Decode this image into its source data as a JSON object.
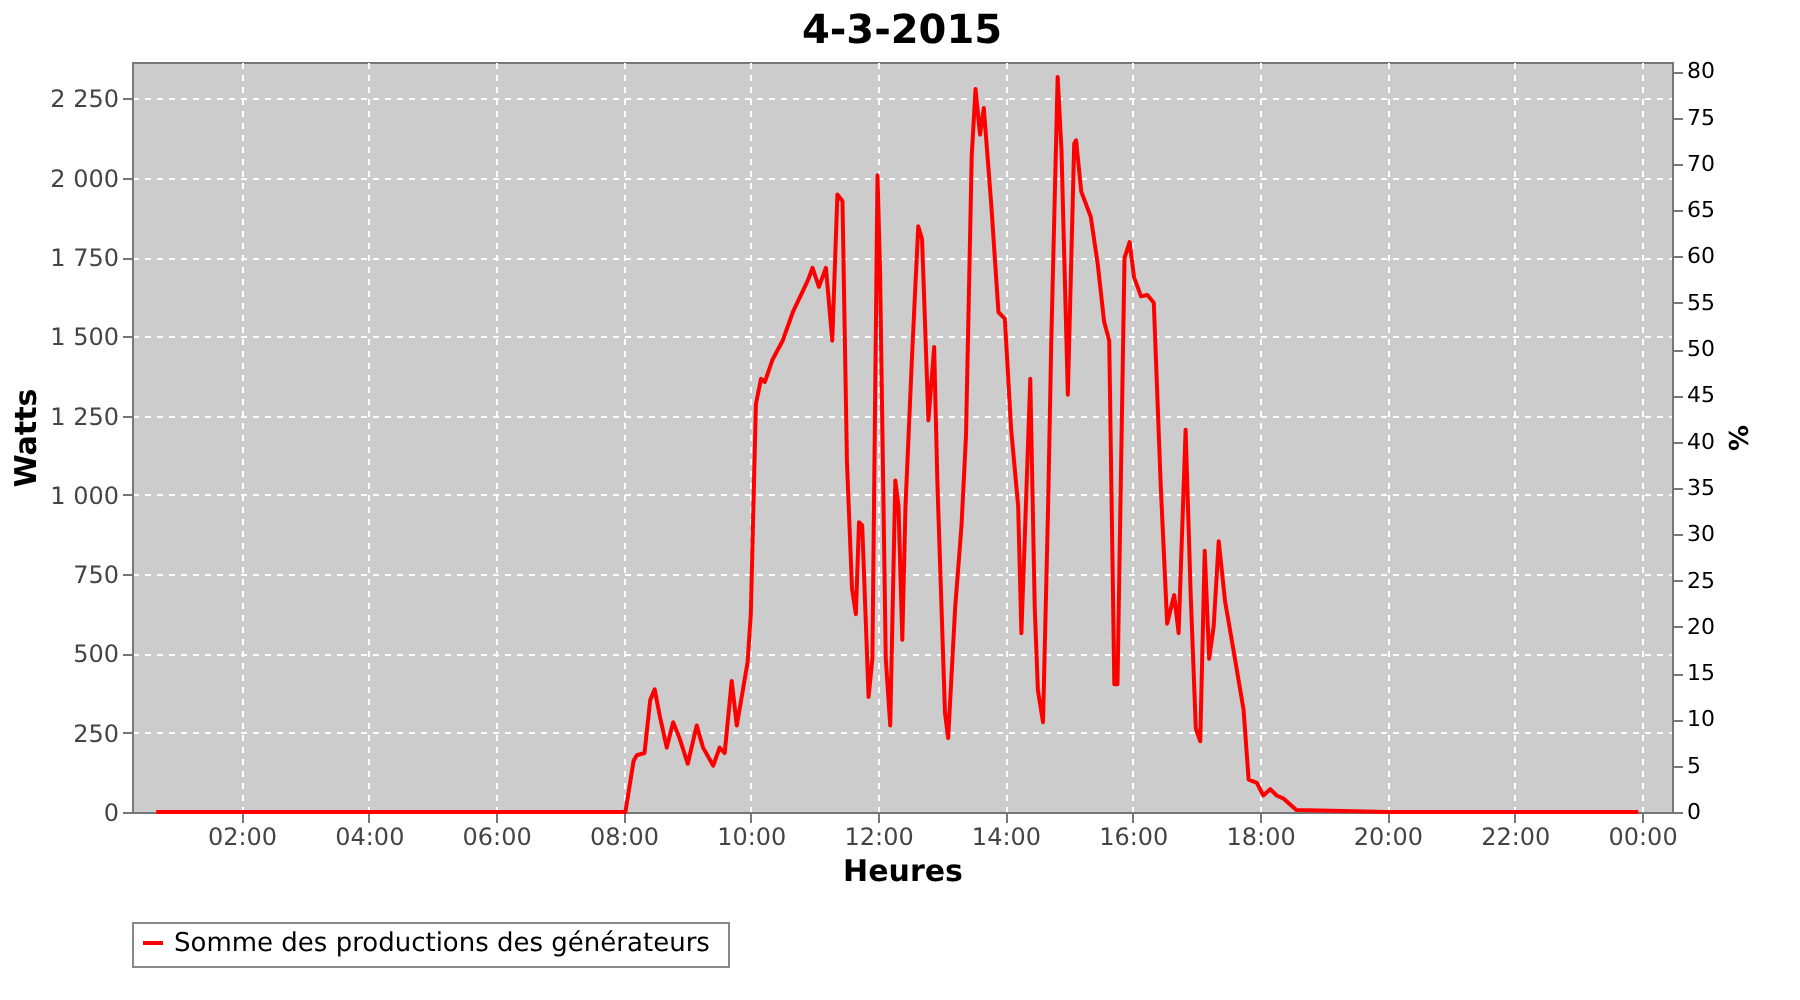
{
  "chart_data": {
    "type": "line",
    "title": "4-3-2015",
    "xlabel": "Heures",
    "ylabel": "Watts",
    "y2label": "%",
    "xlim": [
      0.28,
      24.47
    ],
    "xticks": [
      {
        "value": 2,
        "label": "02:00"
      },
      {
        "value": 4,
        "label": "04:00"
      },
      {
        "value": 6,
        "label": "06:00"
      },
      {
        "value": 8,
        "label": "08:00"
      },
      {
        "value": 10,
        "label": "10:00"
      },
      {
        "value": 12,
        "label": "12:00"
      },
      {
        "value": 14,
        "label": "14:00"
      },
      {
        "value": 16,
        "label": "16:00"
      },
      {
        "value": 18,
        "label": "18:00"
      },
      {
        "value": 20,
        "label": "20:00"
      },
      {
        "value": 22,
        "label": "22:00"
      },
      {
        "value": 24,
        "label": "00:00"
      }
    ],
    "ylim": [
      0,
      2365
    ],
    "yticks": [
      0,
      250,
      500,
      750,
      {
        "value": 1000,
        "label": "1 000"
      },
      {
        "value": 1250,
        "label": "1 250"
      },
      {
        "value": 1500,
        "label": "1 500"
      },
      {
        "value": 1750,
        "label": "1 750"
      },
      {
        "value": 2000,
        "label": "2 000"
      },
      {
        "value": 2250,
        "label": "2 250"
      }
    ],
    "y2lim": [
      0,
      81
    ],
    "y2ticks": [
      0,
      5,
      10,
      15,
      20,
      25,
      30,
      35,
      40,
      45,
      50,
      55,
      60,
      65,
      70,
      75,
      80
    ],
    "grid": true,
    "legend": "bottom",
    "marker": "none",
    "line_style": "solid",
    "series": [
      {
        "name": "Somme des productions des  générateurs",
        "color": "#ff0000",
        "x": [
          0.66,
          4.0,
          7.0,
          8.0,
          8.03,
          8.16,
          8.21,
          8.33,
          8.42,
          8.49,
          8.57,
          8.68,
          8.78,
          8.88,
          9.01,
          9.15,
          9.25,
          9.41,
          9.51,
          9.59,
          9.7,
          9.78,
          9.84,
          9.95,
          10.0,
          10.08,
          10.16,
          10.22,
          10.34,
          10.5,
          10.66,
          10.9,
          10.97,
          11.07,
          11.18,
          11.28,
          11.36,
          11.44,
          11.51,
          11.59,
          11.65,
          11.7,
          11.75,
          11.85,
          11.91,
          11.99,
          12.03,
          12.12,
          12.19,
          12.27,
          12.32,
          12.38,
          12.43,
          12.53,
          12.63,
          12.69,
          12.79,
          12.88,
          12.93,
          13.05,
          13.1,
          13.21,
          13.31,
          13.38,
          13.47,
          13.53,
          13.6,
          13.66,
          13.78,
          13.89,
          13.99,
          14.09,
          14.2,
          14.25,
          14.3,
          14.39,
          14.46,
          14.51,
          14.59,
          14.67,
          14.72,
          14.82,
          14.88,
          14.98,
          15.08,
          15.11,
          15.19,
          15.34,
          15.45,
          15.55,
          15.63,
          15.71,
          15.76,
          15.87,
          15.95,
          16.02,
          16.13,
          16.23,
          16.33,
          16.44,
          16.54,
          16.65,
          16.72,
          16.83,
          16.91,
          16.99,
          17.06,
          17.13,
          17.2,
          17.27,
          17.35,
          17.45,
          17.58,
          17.74,
          17.82,
          17.95,
          18.05,
          18.16,
          18.26,
          18.37,
          18.57,
          20.0,
          22.0,
          23.94
        ],
        "values": [
          0,
          0,
          0,
          0,
          0,
          162,
          179,
          186,
          353,
          387,
          303,
          203,
          283,
          233,
          152,
          273,
          203,
          146,
          203,
          186,
          413,
          273,
          343,
          473,
          624,
          1286,
          1366,
          1356,
          1426,
          1486,
          1576,
          1678,
          1716,
          1656,
          1716,
          1486,
          1947,
          1927,
          1105,
          704,
          624,
          914,
          904,
          363,
          483,
          2008,
          1707,
          483,
          273,
          1045,
          964,
          543,
          964,
          1426,
          1847,
          1807,
          1235,
          1466,
          1045,
          313,
          233,
          644,
          904,
          1185,
          2068,
          2280,
          2136,
          2220,
          1907,
          1576,
          1556,
          1205,
          964,
          564,
          844,
          1366,
          644,
          383,
          283,
          964,
          1486,
          2318,
          2088,
          1316,
          2108,
          2118,
          1957,
          1877,
          1727,
          1546,
          1486,
          403,
          403,
          1747,
          1797,
          1686,
          1626,
          1630,
          1606,
          1025,
          594,
          684,
          564,
          1205,
          684,
          263,
          223,
          824,
          483,
          584,
          854,
          664,
          513,
          323,
          102,
          92,
          52,
          72,
          52,
          42,
          6,
          0,
          0,
          0
        ]
      }
    ]
  }
}
